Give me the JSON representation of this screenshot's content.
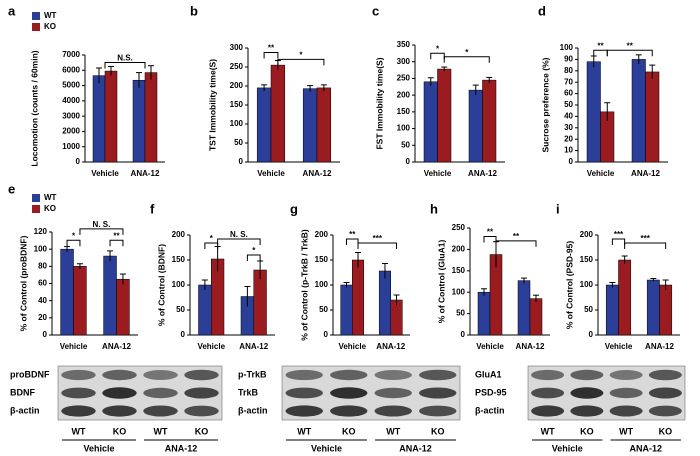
{
  "chart_data": [
    {
      "type": "bar",
      "label": "a",
      "ylabel": "Locomotion (counts / 60min)",
      "categories": [
        "Vehicle",
        "ANA-12"
      ],
      "series": [
        {
          "name": "WT",
          "color": "#2b3f99",
          "values": [
            5650,
            5350
          ],
          "errors": [
            500,
            500
          ]
        },
        {
          "name": "KO",
          "color": "#9b1c20",
          "values": [
            5950,
            5850
          ],
          "errors": [
            300,
            450
          ]
        }
      ],
      "ylim": [
        0,
        7000
      ],
      "yticks": [
        0,
        1000,
        2000,
        3000,
        4000,
        5000,
        6000,
        7000
      ],
      "annotations": [
        "N.S."
      ]
    },
    {
      "type": "bar",
      "label": "b",
      "ylabel": "TST Immobility time(S)",
      "categories": [
        "Vehicle",
        "ANA-12"
      ],
      "series": [
        {
          "color": "#2b3f99",
          "values": [
            195,
            193
          ],
          "errors": [
            8,
            8
          ]
        },
        {
          "color": "#9b1c20",
          "values": [
            255,
            195
          ],
          "errors": [
            12,
            8
          ]
        }
      ],
      "ylim": [
        0,
        300
      ],
      "yticks": [
        0,
        50,
        100,
        150,
        200,
        250,
        300
      ],
      "annotations": [
        "**",
        "*"
      ]
    },
    {
      "type": "bar",
      "label": "c",
      "ylabel": "FST Immobility time(S)",
      "categories": [
        "Vehicle",
        "ANA-12"
      ],
      "series": [
        {
          "color": "#2b3f99",
          "values": [
            240,
            215
          ],
          "errors": [
            12,
            15
          ]
        },
        {
          "color": "#9b1c20",
          "values": [
            278,
            245
          ],
          "errors": [
            6,
            8
          ]
        }
      ],
      "ylim": [
        0,
        350
      ],
      "yticks": [
        0,
        50,
        100,
        150,
        200,
        250,
        300,
        350
      ],
      "annotations": [
        "*",
        "*"
      ]
    },
    {
      "type": "bar",
      "label": "d",
      "ylabel": "Sucrose preference (%)",
      "categories": [
        "Vehicle",
        "ANA-12"
      ],
      "series": [
        {
          "color": "#2b3f99",
          "values": [
            88,
            90
          ],
          "errors": [
            5,
            4
          ]
        },
        {
          "color": "#9b1c20",
          "values": [
            44,
            79
          ],
          "errors": [
            8,
            6
          ]
        }
      ],
      "ylim": [
        0,
        100
      ],
      "yticks": [
        0,
        10,
        20,
        30,
        40,
        50,
        60,
        70,
        80,
        90,
        100
      ],
      "annotations": [
        "**",
        "**"
      ]
    },
    {
      "type": "bar",
      "label": "e",
      "ylabel": "% of Control (proBDNF)",
      "categories": [
        "Vehicle",
        "ANA-12"
      ],
      "series": [
        {
          "name": "WT",
          "color": "#2b3f99",
          "values": [
            100,
            92
          ],
          "errors": [
            3,
            6
          ]
        },
        {
          "name": "KO",
          "color": "#9b1c20",
          "values": [
            80,
            65
          ],
          "errors": [
            3,
            6
          ]
        }
      ],
      "ylim": [
        0,
        120
      ],
      "yticks": [
        0,
        20,
        40,
        60,
        80,
        100,
        120
      ],
      "annotations": [
        "*",
        "N. S.",
        "**"
      ]
    },
    {
      "type": "bar",
      "label": "f",
      "ylabel": "% of Control (BDNF)",
      "categories": [
        "Vehicle",
        "ANA-12"
      ],
      "series": [
        {
          "color": "#2b3f99",
          "values": [
            100,
            77
          ],
          "errors": [
            10,
            20
          ]
        },
        {
          "color": "#9b1c20",
          "values": [
            152,
            130
          ],
          "errors": [
            25,
            18
          ]
        }
      ],
      "ylim": [
        0,
        200
      ],
      "yticks": [
        0,
        50,
        100,
        150,
        200
      ],
      "annotations": [
        "*",
        "N. S.",
        "*"
      ]
    },
    {
      "type": "bar",
      "label": "g",
      "ylabel": "% of Control (p-TrkB / TrkB)",
      "categories": [
        "Vehicle",
        "ANA-12"
      ],
      "series": [
        {
          "color": "#2b3f99",
          "values": [
            100,
            128
          ],
          "errors": [
            5,
            15
          ]
        },
        {
          "color": "#9b1c20",
          "values": [
            150,
            70
          ],
          "errors": [
            15,
            10
          ]
        }
      ],
      "ylim": [
        0,
        200
      ],
      "yticks": [
        0,
        50,
        100,
        150,
        200
      ],
      "annotations": [
        "**",
        "***"
      ]
    },
    {
      "type": "bar",
      "label": "h",
      "ylabel": "% of Control (GluA1)",
      "categories": [
        "Vehicle",
        "ANA-12"
      ],
      "series": [
        {
          "color": "#2b3f99",
          "values": [
            100,
            127
          ],
          "errors": [
            8,
            6
          ]
        },
        {
          "color": "#9b1c20",
          "values": [
            188,
            85
          ],
          "errors": [
            30,
            8
          ]
        }
      ],
      "ylim": [
        0,
        250
      ],
      "yticks": [
        0,
        50,
        100,
        150,
        200,
        250
      ],
      "annotations": [
        "**",
        "**"
      ]
    },
    {
      "type": "bar",
      "label": "i",
      "ylabel": "% of Control (PSD-95)",
      "categories": [
        "Vehicle",
        "ANA-12"
      ],
      "series": [
        {
          "color": "#2b3f99",
          "values": [
            100,
            110
          ],
          "errors": [
            5,
            3
          ]
        },
        {
          "color": "#9b1c20",
          "values": [
            150,
            100
          ],
          "errors": [
            8,
            10
          ]
        }
      ],
      "ylim": [
        0,
        200
      ],
      "yticks": [
        0,
        50,
        100,
        150,
        200
      ],
      "annotations": [
        "***",
        "***"
      ]
    }
  ],
  "blots": [
    {
      "rows": [
        "proBDNF",
        "BDNF",
        "β-actin"
      ],
      "lanes": [
        "WT",
        "KO",
        "WT",
        "KO"
      ],
      "groups": [
        "Vehicle",
        "ANA-12"
      ]
    },
    {
      "rows": [
        "p-TrkB",
        "TrkB",
        "β-actin"
      ],
      "lanes": [
        "WT",
        "KO",
        "WT",
        "KO"
      ],
      "groups": [
        "Vehicle",
        "ANA-12"
      ]
    },
    {
      "rows": [
        "GluA1",
        "PSD-95",
        "β-actin"
      ],
      "lanes": [
        "WT",
        "KO",
        "WT",
        "KO"
      ],
      "groups": [
        "Vehicle",
        "ANA-12"
      ]
    }
  ]
}
